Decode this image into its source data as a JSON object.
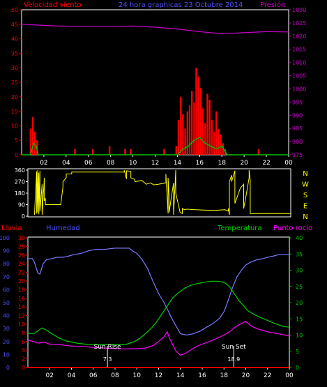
{
  "colors": {
    "background": "#000000",
    "frame": "#ffffff",
    "wind": "#ff0000",
    "wind_avg": "#00c000",
    "pressure": "#cc00cc",
    "direction": "#ffff00",
    "rain": "#ff0000",
    "humidity": "#7b7bff",
    "temperature": "#00d000",
    "dewpoint": "#ff00ff",
    "sun_marker": "#ffffff",
    "humidity_axis": "#5050ff",
    "temperature_axis": "#00d000",
    "dewpoint_label": "#ff00ff"
  },
  "top_panel": {
    "title_left": "Velocidad viento",
    "title_center": "24 hora graphicas  23 Octubre 2014",
    "title_right": "Presión"
  },
  "bottom_panel": {
    "label_rain": "Lluvia",
    "label_humidity": "Humedad",
    "label_temperature": "Temperatura",
    "label_dewpoint": "Punto rocío",
    "sunrise_label": "Sun Rise",
    "sunset_label": "Sun Set",
    "sunrise_time": "7.3",
    "sunset_time": "18.9"
  },
  "chart_data": [
    {
      "type": "line",
      "panel": "wind_pressure",
      "x_ticks": [
        "02",
        "04",
        "06",
        "08",
        "10",
        "12",
        "14",
        "16",
        "18",
        "20",
        "22",
        "00"
      ],
      "xlim": [
        0,
        24
      ],
      "left_axis": {
        "ticks": [
          0,
          5,
          10,
          15,
          20,
          25,
          30,
          35,
          40,
          45,
          50
        ],
        "ylim": [
          0,
          50
        ]
      },
      "right_axis": {
        "ticks": [
          975,
          980,
          985,
          990,
          995,
          1000,
          1005,
          1010,
          1015,
          1020,
          1025,
          1030
        ],
        "ylim": [
          975,
          1030
        ]
      },
      "series": [
        {
          "key": "gust",
          "hours": [
            0.8,
            1.0,
            1.2,
            1.4,
            4.8,
            6.4,
            7.9,
            9.3,
            9.8,
            12.8,
            13.9,
            14.1,
            14.3,
            14.5,
            14.7,
            14.9,
            15.1,
            15.3,
            15.5,
            15.7,
            15.9,
            16.1,
            16.3,
            16.5,
            16.7,
            16.9,
            17.1,
            17.3,
            17.5,
            17.7,
            17.9,
            18.1,
            18.3,
            21.3
          ],
          "values": [
            9,
            13,
            8,
            5,
            2,
            2,
            3,
            2,
            2,
            2,
            3,
            12,
            20,
            14,
            9,
            15,
            17,
            22,
            18,
            30,
            27,
            23,
            16,
            11,
            21,
            19,
            12,
            8,
            15,
            9,
            7,
            4,
            2,
            2
          ]
        },
        {
          "key": "average",
          "hours": [
            0,
            0.8,
            1.0,
            1.1,
            1.3,
            1.5,
            14.0,
            14.5,
            15.0,
            15.5,
            16.0,
            16.5,
            17.0,
            17.5,
            18.0,
            18.3,
            18.5,
            24
          ],
          "values": [
            0,
            0,
            3,
            4,
            3,
            0,
            0,
            2,
            3,
            5,
            6,
            4,
            3,
            2,
            3,
            1,
            0,
            0
          ]
        },
        {
          "key": "pressure",
          "hours": [
            0,
            1,
            3,
            6,
            8,
            10,
            12,
            14,
            16,
            18,
            20,
            22,
            24
          ],
          "values": [
            1024.5,
            1024.3,
            1023.9,
            1023.6,
            1023.7,
            1023.8,
            1023.4,
            1022.7,
            1021.7,
            1020.9,
            1021.3,
            1021.7,
            1021.6
          ]
        }
      ]
    },
    {
      "type": "line",
      "panel": "wind_direction",
      "y_ticks": [
        0,
        90,
        180,
        270,
        360
      ],
      "compass": [
        "N",
        "W",
        "S",
        "E",
        "N"
      ],
      "ylim": [
        0,
        360
      ],
      "series": [
        {
          "key": "direction",
          "hours": [
            0.6,
            0.8,
            0.8,
            0.9,
            0.9,
            1.0,
            1.0,
            1.1,
            1.1,
            1.3,
            1.3,
            1.5,
            1.5,
            1.6,
            1.6,
            3.0,
            3.2,
            3.2,
            3.5,
            3.5,
            4.0,
            4.0,
            8.8,
            8.8,
            9.0,
            9.0,
            9.4,
            9.4,
            9.7,
            9.8,
            10.4,
            10.8,
            11.2,
            11.5,
            11.9,
            12.6,
            12.6,
            12.8,
            12.8,
            12.9,
            12.9,
            13.3,
            13.3,
            13.5,
            13.5,
            13.9,
            14.1,
            14.1,
            14.3,
            14.5,
            15.0,
            16.0,
            17.0,
            18.0,
            18.3,
            18.3,
            18.4,
            18.4,
            18.6,
            18.6,
            18.9,
            18.9,
            19.4,
            19.7,
            19.7,
            20.0,
            20.2,
            20.2,
            20.3,
            20.3,
            24.0
          ],
          "values": [
            10,
            350,
            20,
            360,
            30,
            340,
            15,
            355,
            40,
            250,
            10,
            300,
            120,
            140,
            90,
            90,
            230,
            270,
            300,
            330,
            330,
            345,
            345,
            360,
            290,
            355,
            350,
            300,
            290,
            270,
            280,
            250,
            260,
            245,
            250,
            260,
            330,
            20,
            300,
            140,
            30,
            260,
            10,
            360,
            180,
            30,
            20,
            60,
            50,
            55,
            52,
            48,
            45,
            50,
            40,
            60,
            10,
            270,
            320,
            270,
            355,
            100,
            220,
            250,
            60,
            200,
            300,
            360,
            280,
            20,
            20
          ]
        }
      ]
    },
    {
      "type": "line",
      "panel": "humidity_temperature",
      "rain_axis": {
        "ticks": [
          0,
          2,
          4,
          6,
          8,
          10,
          12,
          14,
          16,
          18,
          20,
          22,
          24,
          26,
          28,
          30
        ],
        "ylim": [
          0,
          30
        ]
      },
      "humidity_axis": {
        "ticks": [
          0,
          10,
          20,
          30,
          40,
          50,
          60,
          70,
          80,
          90,
          100
        ],
        "ylim": [
          0,
          100
        ]
      },
      "temperature_axis": {
        "ticks": [
          0,
          5,
          10,
          15,
          20,
          25,
          30,
          35,
          40
        ],
        "ylim": [
          0,
          40
        ]
      },
      "series": [
        {
          "key": "humidity",
          "hours": [
            0,
            0.4,
            0.6,
            0.9,
            1.1,
            1.4,
            1.7,
            2.2,
            2.7,
            3.3,
            3.8,
            4.2,
            4.9,
            5.6,
            6.2,
            7.0,
            8.0,
            8.6,
            9.3,
            9.6,
            10.0,
            10.5,
            11.0,
            11.5,
            12.0,
            12.5,
            12.8,
            13.2,
            13.6,
            14.0,
            14.6,
            15.2,
            15.8,
            16.4,
            17.0,
            17.6,
            18.0,
            18.4,
            18.8,
            19.2,
            19.6,
            20.0,
            20.4,
            21.0,
            21.6,
            22.0,
            22.6,
            23.0,
            24.0
          ],
          "values": [
            84,
            84,
            81,
            73,
            72,
            80,
            83,
            84,
            85,
            85,
            86,
            87,
            88,
            90,
            91,
            91,
            92,
            92,
            92,
            90,
            88,
            83,
            76,
            66,
            57,
            50,
            45,
            38,
            32,
            26,
            25,
            26,
            28,
            31,
            34,
            38,
            43,
            52,
            62,
            70,
            75,
            79,
            81,
            83,
            84,
            85,
            86,
            87,
            87
          ]
        },
        {
          "key": "temperature",
          "hours": [
            0,
            0.6,
            1.0,
            1.3,
            1.7,
            2.2,
            2.8,
            3.5,
            4.5,
            5.5,
            6.5,
            7.5,
            8.5,
            9.0,
            9.8,
            10.3,
            10.8,
            11.3,
            11.8,
            12.3,
            12.8,
            13.3,
            13.8,
            14.4,
            15.0,
            15.6,
            16.2,
            16.8,
            17.4,
            17.8,
            18.2,
            18.6,
            19.0,
            19.4,
            19.8,
            20.2,
            20.7,
            21.3,
            22.0,
            22.7,
            23.4,
            24.0
          ],
          "values": [
            10.5,
            10.5,
            11.5,
            12.2,
            11.5,
            10.4,
            9.2,
            8.2,
            7.5,
            7.1,
            7.0,
            7.0,
            7.0,
            7.1,
            8.0,
            9.0,
            10.5,
            12.0,
            14.0,
            16.5,
            19.0,
            21.5,
            23.0,
            24.5,
            25.4,
            25.9,
            26.3,
            26.6,
            26.6,
            26.4,
            25.9,
            24.5,
            22.5,
            20.5,
            19.0,
            17.5,
            16.5,
            15.5,
            14.5,
            13.5,
            12.7,
            12.4
          ]
        },
        {
          "key": "dewpoint",
          "hours": [
            0,
            0.5,
            1.0,
            1.5,
            2.0,
            3.0,
            4.0,
            5.0,
            6.0,
            7.0,
            8.0,
            9.0,
            10.0,
            10.8,
            11.5,
            12.0,
            12.5,
            12.8,
            13.0,
            13.3,
            13.6,
            14.0,
            14.5,
            15.0,
            15.5,
            16.0,
            16.5,
            17.0,
            17.5,
            18.0,
            18.5,
            19.0,
            19.5,
            20.0,
            20.5,
            21.0,
            21.5,
            22.0,
            23.0,
            24.0
          ],
          "values": [
            8.5,
            8.0,
            7.5,
            7.8,
            7.2,
            7.0,
            6.6,
            6.5,
            6.2,
            6.0,
            5.8,
            5.7,
            5.8,
            6.0,
            6.8,
            8.0,
            9.5,
            11.0,
            9.0,
            7.0,
            5.0,
            3.8,
            4.4,
            5.5,
            6.5,
            7.2,
            7.8,
            8.5,
            9.2,
            10.0,
            11.0,
            12.4,
            13.4,
            14.2,
            12.8,
            12.0,
            11.5,
            11.0,
            10.4,
            9.7
          ]
        },
        {
          "key": "rain",
          "hours": [
            0,
            24
          ],
          "values": [
            0,
            0
          ]
        }
      ]
    }
  ]
}
